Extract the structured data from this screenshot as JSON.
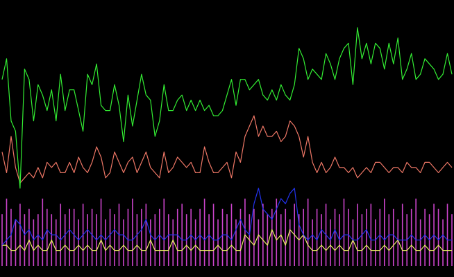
{
  "chart_data": {
    "type": "line",
    "background": "#000000",
    "grid": false,
    "legend": "none",
    "title": "",
    "xlabel": "",
    "ylabel": "",
    "xlim": [
      0,
      100
    ],
    "ylim": [
      0,
      100
    ],
    "series": [
      {
        "key": "green",
        "color": "#33ee33",
        "style": "line",
        "values": [
          72,
          80,
          56,
          52,
          30,
          76,
          72,
          56,
          70,
          66,
          60,
          68,
          56,
          74,
          60,
          68,
          68,
          60,
          52,
          74,
          70,
          78,
          62,
          60,
          60,
          70,
          62,
          48,
          66,
          54,
          64,
          74,
          66,
          64,
          50,
          56,
          70,
          60,
          60,
          64,
          66,
          60,
          64,
          60,
          64,
          60,
          62,
          58,
          58,
          60,
          66,
          72,
          62,
          72,
          72,
          68,
          70,
          72,
          66,
          64,
          68,
          64,
          70,
          66,
          64,
          70,
          84,
          80,
          72,
          76,
          74,
          72,
          82,
          78,
          72,
          80,
          84,
          86,
          70,
          92,
          80,
          86,
          78,
          86,
          84,
          76,
          86,
          78,
          88,
          72,
          76,
          82,
          72,
          74,
          80,
          78,
          76,
          72,
          74,
          82,
          74
        ]
      },
      {
        "key": "salmon",
        "color": "#ee7766",
        "style": "line",
        "values": [
          44,
          36,
          50,
          38,
          32,
          34,
          36,
          34,
          38,
          34,
          40,
          38,
          40,
          36,
          36,
          40,
          36,
          42,
          38,
          36,
          40,
          46,
          42,
          34,
          36,
          44,
          40,
          36,
          40,
          42,
          36,
          40,
          44,
          38,
          36,
          34,
          44,
          36,
          38,
          42,
          40,
          38,
          40,
          36,
          36,
          46,
          40,
          36,
          36,
          38,
          40,
          34,
          44,
          40,
          50,
          54,
          58,
          50,
          54,
          50,
          50,
          52,
          48,
          50,
          56,
          54,
          50,
          42,
          50,
          40,
          36,
          40,
          36,
          38,
          42,
          38,
          38,
          36,
          38,
          34,
          36,
          38,
          36,
          40,
          40,
          38,
          36,
          38,
          38,
          36,
          40,
          38,
          38,
          36,
          40,
          40,
          38,
          36,
          38,
          40,
          38
        ]
      },
      {
        "key": "blue",
        "color": "#2233ee",
        "style": "line",
        "values": [
          8,
          10,
          12,
          18,
          16,
          12,
          14,
          10,
          12,
          10,
          14,
          12,
          12,
          10,
          12,
          14,
          12,
          10,
          12,
          14,
          12,
          10,
          12,
          10,
          12,
          14,
          12,
          12,
          10,
          10,
          12,
          14,
          18,
          12,
          10,
          12,
          10,
          12,
          12,
          12,
          10,
          10,
          12,
          10,
          12,
          10,
          12,
          10,
          10,
          12,
          12,
          10,
          14,
          18,
          14,
          12,
          24,
          30,
          22,
          20,
          18,
          22,
          26,
          24,
          28,
          30,
          16,
          12,
          10,
          12,
          10,
          14,
          12,
          10,
          14,
          10,
          12,
          12,
          10,
          10,
          12,
          14,
          10,
          10,
          12,
          10,
          12,
          12,
          10,
          10,
          10,
          12,
          10,
          10,
          12,
          10,
          12,
          10,
          12,
          10,
          10
        ]
      },
      {
        "key": "yellow",
        "color": "#eeee66",
        "style": "line",
        "values": [
          8,
          8,
          6,
          6,
          8,
          6,
          10,
          6,
          8,
          6,
          6,
          10,
          6,
          6,
          8,
          6,
          6,
          8,
          6,
          8,
          6,
          6,
          10,
          6,
          8,
          6,
          6,
          8,
          6,
          6,
          8,
          6,
          6,
          10,
          6,
          6,
          6,
          6,
          10,
          6,
          6,
          8,
          6,
          8,
          6,
          6,
          6,
          6,
          8,
          6,
          6,
          8,
          6,
          6,
          12,
          10,
          8,
          12,
          10,
          8,
          14,
          10,
          12,
          8,
          14,
          12,
          10,
          12,
          8,
          6,
          6,
          8,
          6,
          8,
          6,
          8,
          6,
          6,
          10,
          6,
          6,
          8,
          6,
          6,
          6,
          8,
          6,
          8,
          10,
          6,
          6,
          8,
          6,
          6,
          8,
          6,
          6,
          8,
          6,
          6,
          6
        ]
      },
      {
        "key": "magenta",
        "color": "#cc44cc",
        "style": "impulse",
        "values": [
          20,
          26,
          22,
          18,
          24,
          20,
          22,
          18,
          20,
          26,
          22,
          20,
          18,
          24,
          20,
          22,
          22,
          18,
          24,
          20,
          22,
          20,
          26,
          18,
          22,
          20,
          24,
          18,
          22,
          26,
          20,
          22,
          24,
          18,
          20,
          22,
          26,
          20,
          18,
          22,
          24,
          20,
          22,
          18,
          22,
          26,
          20,
          24,
          18,
          22,
          20,
          24,
          18,
          22,
          26,
          20,
          22,
          18,
          24,
          20,
          22,
          26,
          20,
          22,
          18,
          24,
          20,
          22,
          26,
          18,
          22,
          20,
          24,
          18,
          22,
          20,
          26,
          22,
          18,
          24,
          20,
          22,
          24,
          18,
          22,
          26,
          20,
          22,
          18,
          24,
          20,
          22,
          26,
          18,
          22,
          20,
          24,
          22,
          18,
          24,
          20
        ]
      }
    ]
  }
}
